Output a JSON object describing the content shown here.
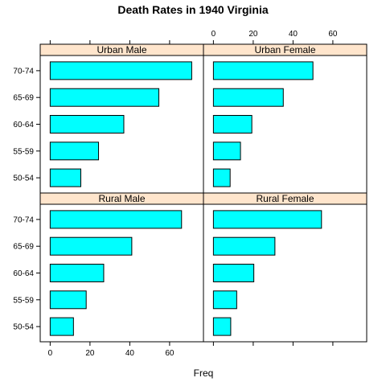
{
  "chart_data": {
    "type": "bar",
    "orientation": "horizontal",
    "title": "Death Rates in 1940 Virginia",
    "xlabel": "Freq",
    "ylabel": "",
    "xlim": [
      -5,
      77
    ],
    "x_ticks": [
      0,
      20,
      40,
      60
    ],
    "categories": [
      "50-54",
      "55-59",
      "60-64",
      "65-69",
      "70-74"
    ],
    "layout": "2x2",
    "colors": {
      "bar": "#00ffff",
      "strip": "#ffe5cc"
    },
    "panels": [
      {
        "name": "Urban Male",
        "values": [
          15.4,
          24.3,
          37.0,
          54.6,
          71.1
        ]
      },
      {
        "name": "Urban Female",
        "values": [
          8.4,
          13.6,
          19.3,
          35.1,
          50.0
        ]
      },
      {
        "name": "Rural Male",
        "values": [
          11.7,
          18.1,
          26.9,
          41.0,
          66.0
        ]
      },
      {
        "name": "Rural Female",
        "values": [
          8.7,
          11.7,
          20.3,
          30.9,
          54.3
        ]
      }
    ]
  }
}
